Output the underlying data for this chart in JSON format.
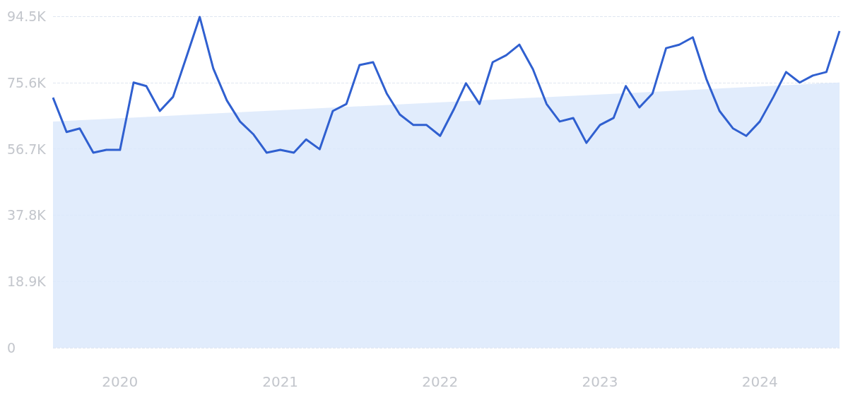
{
  "chart_data": {
    "type": "line",
    "x": [
      "2019-08",
      "2019-09",
      "2019-10",
      "2019-11",
      "2019-12",
      "2020-01",
      "2020-02",
      "2020-03",
      "2020-04",
      "2020-05",
      "2020-06",
      "2020-07",
      "2020-08",
      "2020-09",
      "2020-10",
      "2020-11",
      "2020-12",
      "2021-01",
      "2021-02",
      "2021-03",
      "2021-04",
      "2021-05",
      "2021-06",
      "2021-07",
      "2021-08",
      "2021-09",
      "2021-10",
      "2021-11",
      "2021-12",
      "2022-01",
      "2022-02",
      "2022-03",
      "2022-04",
      "2022-05",
      "2022-06",
      "2022-07",
      "2022-08",
      "2022-09",
      "2022-10",
      "2022-11",
      "2022-12",
      "2023-01",
      "2023-02",
      "2023-03",
      "2023-04",
      "2023-05",
      "2023-06",
      "2023-07",
      "2023-08",
      "2023-09",
      "2023-10",
      "2023-11",
      "2023-12",
      "2024-01",
      "2024-02",
      "2024-03",
      "2024-04",
      "2024-05",
      "2024-06",
      "2024-07"
    ],
    "series": [
      {
        "type": "area",
        "color": "#dce9fb",
        "x": [
          "2019-08",
          "2024-07"
        ],
        "values": [
          64500,
          75600
        ]
      },
      {
        "color": "#3060d0",
        "values": [
          71300,
          61500,
          62500,
          55600,
          56400,
          56400,
          75600,
          74600,
          67500,
          71500,
          83000,
          94300,
          79600,
          70500,
          64500,
          60800,
          55600,
          56400,
          55600,
          59400,
          56600,
          67500,
          69500,
          80600,
          81400,
          72500,
          66500,
          63500,
          63500,
          60400,
          67900,
          75400,
          69500,
          81400,
          83400,
          86400,
          79400,
          69500,
          64500,
          65500,
          58400,
          63500,
          65500,
          74600,
          68500,
          72500,
          85400,
          86400,
          88500,
          76600,
          67500,
          62500,
          60400,
          64500,
          71500,
          78600,
          75600,
          77600,
          78600,
          90300
        ]
      }
    ],
    "xlim": [
      "2019-08",
      "2024-07"
    ],
    "xticks": [
      {
        "value": "2020-01",
        "label": "2020"
      },
      {
        "value": "2021-01",
        "label": "2021"
      },
      {
        "value": "2022-01",
        "label": "2022"
      },
      {
        "value": "2023-01",
        "label": "2023"
      },
      {
        "value": "2024-01",
        "label": "2024"
      }
    ],
    "ylim": [
      0,
      94500
    ],
    "yticks": [
      0,
      {
        "value": 18900,
        "label": "18.9K"
      },
      {
        "value": 37800,
        "label": "37.8K"
      },
      {
        "value": 56700,
        "label": "56.7K"
      },
      {
        "value": 75600,
        "label": "75.6K"
      },
      {
        "value": 94500,
        "label": "94.5K"
      }
    ],
    "grid": "y",
    "marker": "none",
    "line_style": "solid"
  }
}
